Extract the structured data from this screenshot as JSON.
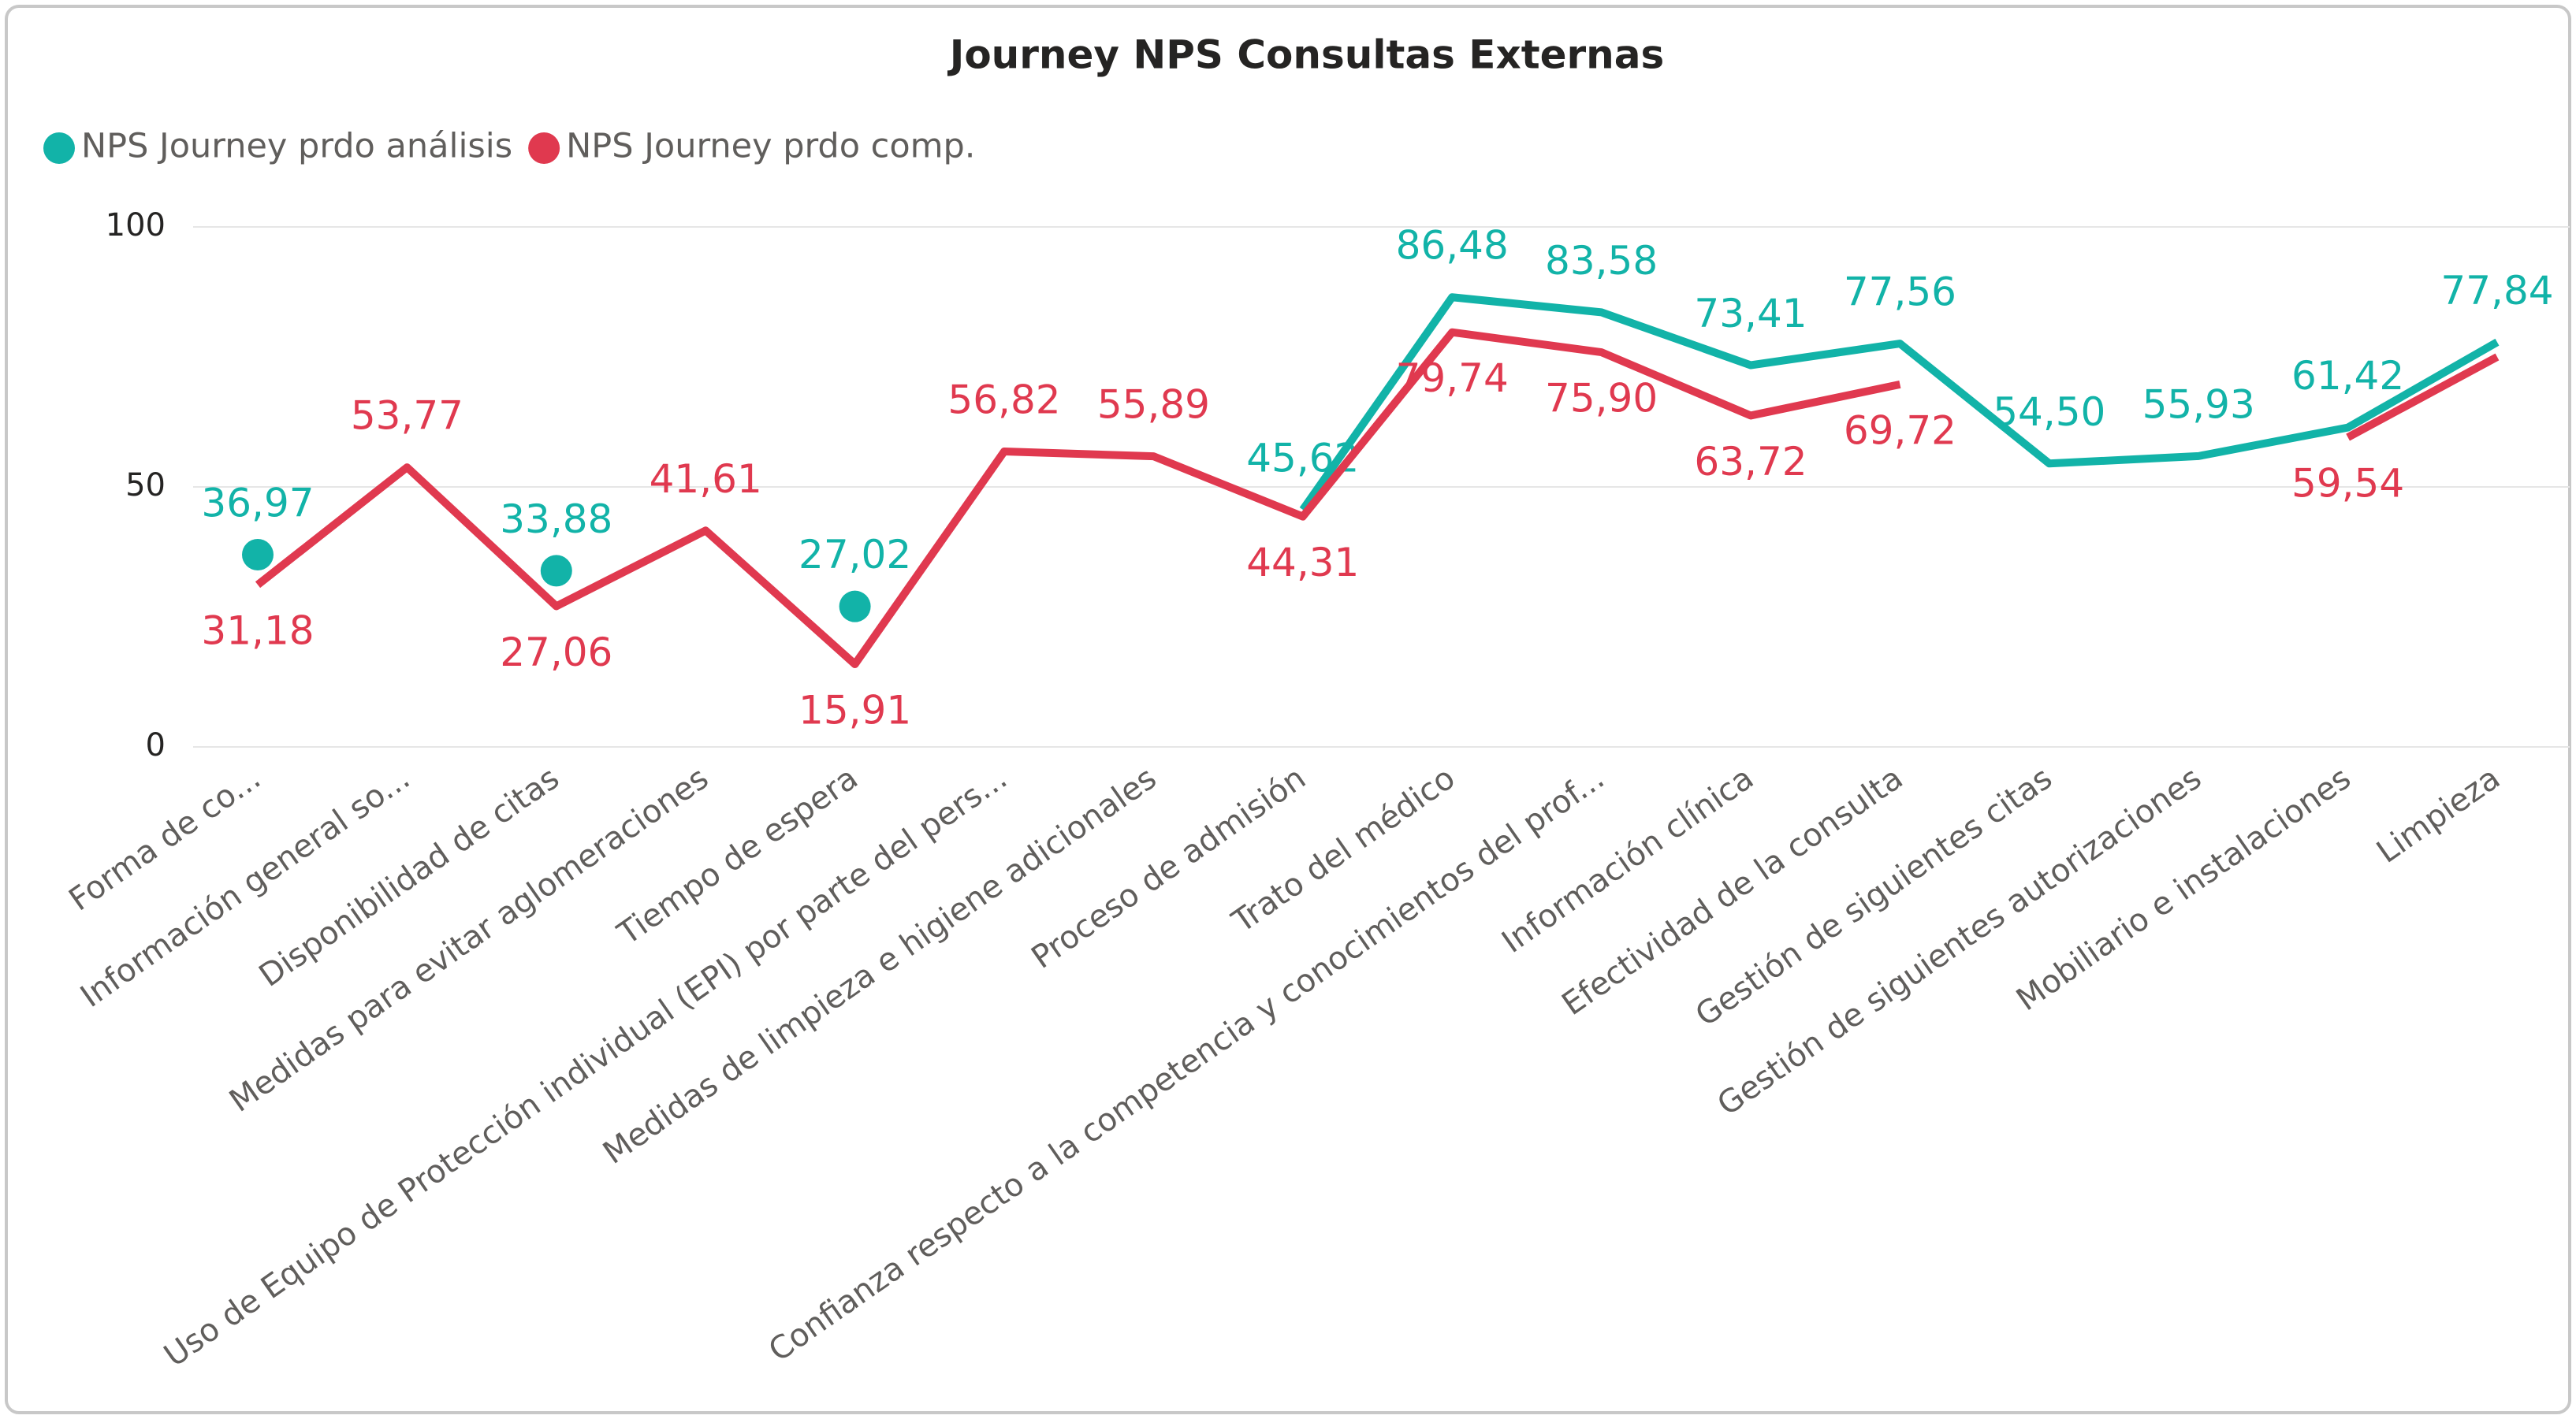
{
  "chart_data": {
    "type": "line",
    "title": "Journey NPS Consultas Externas",
    "categories": [
      "Forma de co...",
      "Información general so...",
      "Disponibilidad de citas",
      "Medidas para evitar aglomeraciones",
      "Tiempo de espera",
      "Uso de Equipo de Protección individual (EPI) por parte del pers...",
      "Medidas de limpieza e higiene adicionales",
      "Proceso de admisión",
      "Trato del médico",
      "Confianza respecto a la competencia y conocimientos del prof...",
      "Información clínica",
      "Efectividad de la consulta",
      "Gestión de siguientes citas",
      "Gestión de siguientes autorizaciones",
      "Mobiliario e instalaciones",
      "Limpieza"
    ],
    "series": [
      {
        "name": "NPS Journey prdo análisis",
        "color": "#12b3a8",
        "values": [
          36.97,
          null,
          33.88,
          null,
          27.02,
          null,
          null,
          45.62,
          86.48,
          83.58,
          73.41,
          77.56,
          54.5,
          55.93,
          61.42,
          77.84
        ],
        "value_labels": [
          "36,97",
          null,
          "33,88",
          null,
          "27,02",
          null,
          null,
          "45,62",
          "86,48",
          "83,58",
          "73,41",
          "77,56",
          "54,50",
          "55,93",
          "61,42",
          "77,84"
        ]
      },
      {
        "name": "NPS Journey prdo comp.",
        "color": "#e0394f",
        "values": [
          31.18,
          53.77,
          27.06,
          41.61,
          15.91,
          56.82,
          55.89,
          44.31,
          79.74,
          75.9,
          63.72,
          69.72,
          null,
          null,
          59.54,
          75
        ],
        "value_labels": [
          "31,18",
          "53,77",
          "27,06",
          "41,61",
          "15,91",
          "56,82",
          "55,89",
          "44,31",
          "79,74",
          "75,90",
          "63,72",
          "69,72",
          null,
          null,
          "59,54",
          null
        ]
      }
    ],
    "ylim": [
      0,
      100
    ],
    "yticks": [
      0,
      50,
      100
    ],
    "grid": true,
    "legend": "top-left"
  }
}
